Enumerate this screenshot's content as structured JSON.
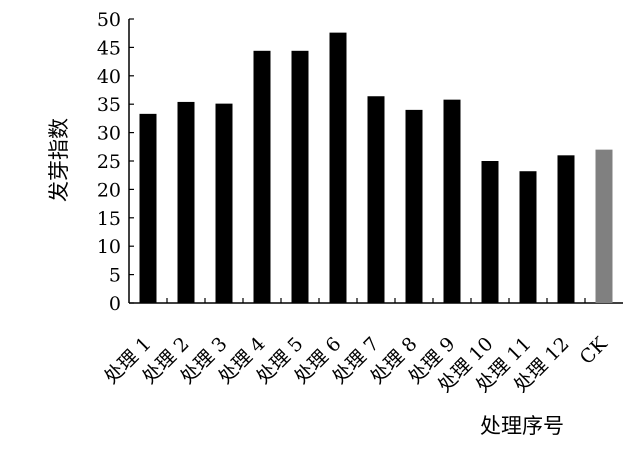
{
  "chart_data": {
    "type": "bar",
    "title": "",
    "xlabel": "处理序号",
    "ylabel": "发芽指数",
    "ylim": [
      0,
      50
    ],
    "yticks": [
      0,
      5,
      10,
      15,
      20,
      25,
      30,
      35,
      40,
      45,
      50
    ],
    "categories": [
      "处理 1",
      "处理 2",
      "处理 3",
      "处理 4",
      "处理 5",
      "处理 6",
      "处理 7",
      "处理 8",
      "处理 9",
      "处理 10",
      "处理 11",
      "处理 12",
      "CK"
    ],
    "values": [
      33.3,
      35.4,
      35.1,
      44.4,
      44.4,
      47.6,
      36.4,
      34.0,
      35.8,
      25.0,
      23.2,
      26.0,
      27.0
    ],
    "colors": [
      "#000000",
      "#000000",
      "#000000",
      "#000000",
      "#000000",
      "#000000",
      "#000000",
      "#000000",
      "#000000",
      "#000000",
      "#000000",
      "#000000",
      "#808080"
    ],
    "grid": false,
    "legend": "none"
  }
}
